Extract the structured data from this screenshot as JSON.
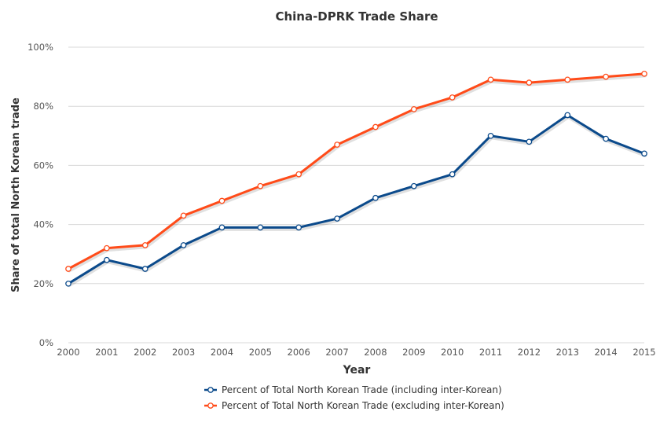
{
  "chart_data": {
    "type": "line",
    "title": "China-DPRK Trade Share",
    "xlabel": "Year",
    "ylabel": "Share of total North Korean trade",
    "categories": [
      "2000",
      "2001",
      "2002",
      "2003",
      "2004",
      "2005",
      "2006",
      "2007",
      "2008",
      "2009",
      "2010",
      "2011",
      "2012",
      "2013",
      "2014",
      "2015"
    ],
    "ylim": [
      0,
      100
    ],
    "yticks": [
      0,
      20,
      40,
      60,
      80,
      100
    ],
    "ytick_labels": [
      "0%",
      "20%",
      "40%",
      "60%",
      "80%",
      "100%"
    ],
    "grid": true,
    "legend_position": "bottom-center",
    "series": [
      {
        "name": "Percent of Total North Korean Trade (including inter-Korean)",
        "color": "#0b4a8b",
        "values": [
          20,
          28,
          25,
          33,
          39,
          39,
          39,
          42,
          49,
          53,
          57,
          70,
          68,
          77,
          69,
          64
        ]
      },
      {
        "name": "Percent of Total North Korean Trade (excluding inter-Korean)",
        "color": "#ff4b19",
        "values": [
          25,
          32,
          33,
          43,
          48,
          53,
          57,
          67,
          73,
          79,
          83,
          89,
          88,
          89,
          90,
          91
        ]
      }
    ]
  }
}
